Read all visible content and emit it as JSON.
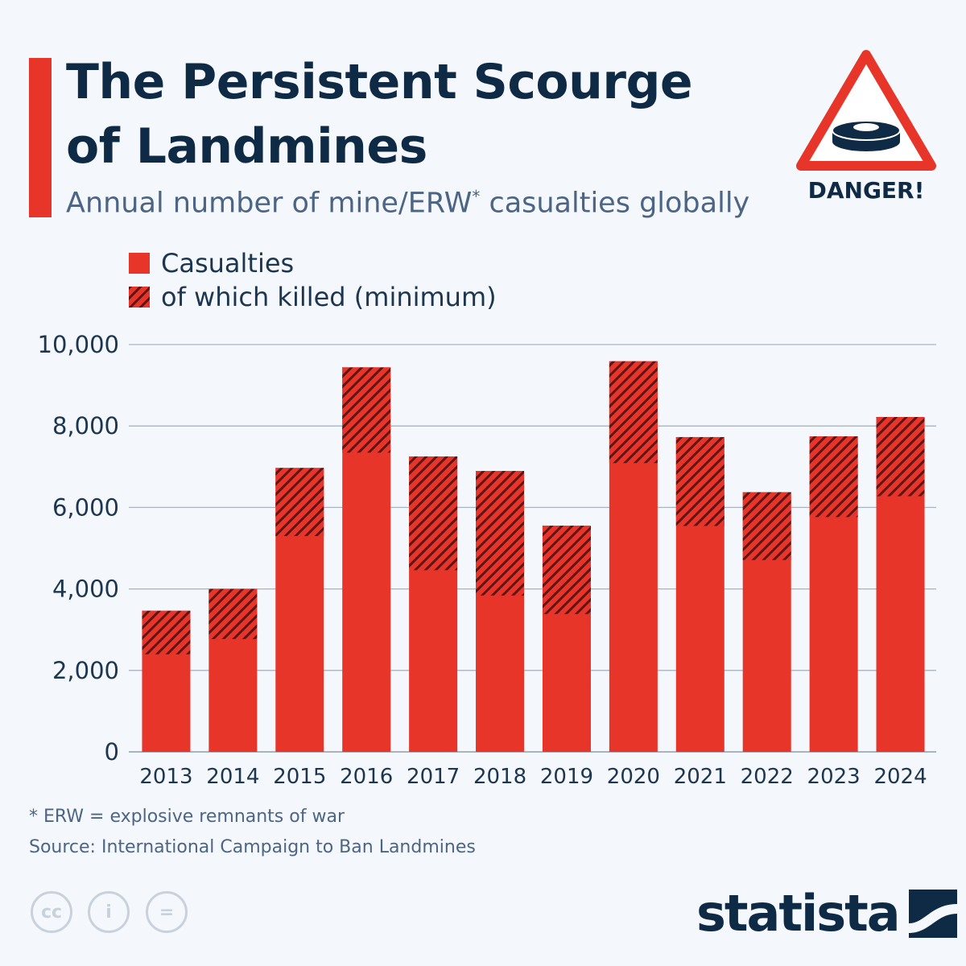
{
  "header": {
    "title_line1": "The Persistent Scourge",
    "title_line2": "of Landmines",
    "subtitle": "Annual number of mine/ERW",
    "subtitle_sup": "*",
    "subtitle_end": " casualties globally",
    "danger_label": "DANGER!"
  },
  "legend": [
    {
      "label": "Casualties"
    },
    {
      "label": "of which killed (minimum)"
    }
  ],
  "colors": {
    "bar": "#e8352a",
    "hatch": "#5e1515",
    "grid": "#a9b4c2",
    "text": "#0f2a45"
  },
  "chart_data": {
    "type": "bar",
    "stacked_overlay": true,
    "title": "Annual number of mine/ERW* casualties globally",
    "xlabel": "",
    "ylabel": "",
    "ylim": [
      0,
      10000
    ],
    "yticks": [
      0,
      2000,
      4000,
      6000,
      8000,
      10000
    ],
    "ytick_labels": [
      "0",
      "2,000",
      "4,000",
      "6,000",
      "8,000",
      "10,000"
    ],
    "categories": [
      "2013",
      "2014",
      "2015",
      "2016",
      "2017",
      "2018",
      "2019",
      "2020",
      "2021",
      "2022",
      "2023",
      "2024"
    ],
    "series": [
      {
        "name": "Casualties",
        "values": [
          3465,
          4000,
          6971,
          9440,
          7253,
          6897,
          5554,
          9590,
          7728,
          6375,
          7747,
          8221
        ]
      },
      {
        "name": "of which killed (minimum)",
        "values": [
          1070,
          1230,
          1673,
          2095,
          2793,
          3059,
          2170,
          2500,
          2182,
          1666,
          1983,
          1945
        ]
      }
    ],
    "grid": true,
    "legend_position": "top-left"
  },
  "footer": {
    "note": "* ERW = explosive remnants of war",
    "source": "Source: International Campaign to Ban Landmines",
    "cc_labels": [
      "cc",
      "i",
      "="
    ],
    "brand": "statista"
  }
}
